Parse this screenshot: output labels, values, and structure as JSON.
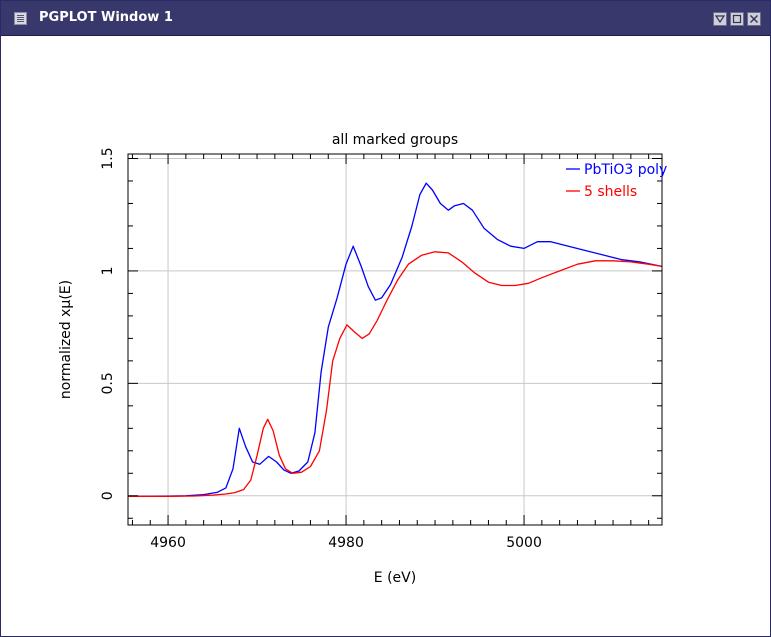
{
  "window": {
    "title": "PGPLOT Window 1",
    "icons": {
      "app": "window-menu-icon",
      "minimize": "minimize-icon",
      "maximize": "maximize-icon",
      "close": "close-icon"
    }
  },
  "chart_data": {
    "type": "line",
    "title": "all marked groups",
    "xlabel": "E (eV)",
    "ylabel": "normalized xμ(E)",
    "xlim": [
      4955.5,
      5015.5
    ],
    "ylim": [
      -0.13,
      1.52
    ],
    "x_ticks": [
      4960,
      4980,
      5000
    ],
    "x_tick_labels": [
      "4960",
      "4980",
      "5000"
    ],
    "y_ticks": [
      0,
      0.5,
      1,
      1.5
    ],
    "y_tick_labels": [
      "0",
      "0.5",
      "1",
      "1.5"
    ],
    "grid": true,
    "legend_position": "top-right",
    "series": [
      {
        "name": "PbTiO3 poly",
        "color": "#0000ff",
        "points": [
          [
            4955.5,
            -0.003
          ],
          [
            4958,
            -0.003
          ],
          [
            4960,
            -0.002
          ],
          [
            4962,
            0.0
          ],
          [
            4964,
            0.005
          ],
          [
            4965.5,
            0.015
          ],
          [
            4966.5,
            0.035
          ],
          [
            4967.3,
            0.12
          ],
          [
            4968,
            0.3
          ],
          [
            4968.7,
            0.22
          ],
          [
            4969.5,
            0.15
          ],
          [
            4970.3,
            0.14
          ],
          [
            4971.3,
            0.175
          ],
          [
            4972.2,
            0.15
          ],
          [
            4973,
            0.115
          ],
          [
            4973.8,
            0.1
          ],
          [
            4974.7,
            0.11
          ],
          [
            4975.7,
            0.15
          ],
          [
            4976.5,
            0.28
          ],
          [
            4977.2,
            0.55
          ],
          [
            4978,
            0.75
          ],
          [
            4979,
            0.88
          ],
          [
            4980,
            1.03
          ],
          [
            4980.8,
            1.11
          ],
          [
            4981.7,
            1.02
          ],
          [
            4982.5,
            0.93
          ],
          [
            4983.3,
            0.87
          ],
          [
            4984,
            0.88
          ],
          [
            4985,
            0.94
          ],
          [
            4986.3,
            1.06
          ],
          [
            4987.4,
            1.2
          ],
          [
            4988.3,
            1.34
          ],
          [
            4989,
            1.39
          ],
          [
            4989.7,
            1.36
          ],
          [
            4990.6,
            1.3
          ],
          [
            4991.5,
            1.27
          ],
          [
            4992.2,
            1.29
          ],
          [
            4993.2,
            1.3
          ],
          [
            4994.2,
            1.27
          ],
          [
            4995.5,
            1.19
          ],
          [
            4997,
            1.14
          ],
          [
            4998.5,
            1.11
          ],
          [
            5000,
            1.1
          ],
          [
            5001.5,
            1.13
          ],
          [
            5003,
            1.13
          ],
          [
            5005,
            1.11
          ],
          [
            5007,
            1.09
          ],
          [
            5009,
            1.07
          ],
          [
            5011,
            1.05
          ],
          [
            5013,
            1.04
          ],
          [
            5015.5,
            1.02
          ]
        ]
      },
      {
        "name": "5 shells",
        "color": "#ff0000",
        "points": [
          [
            4955.5,
            -0.003
          ],
          [
            4960,
            -0.003
          ],
          [
            4963,
            -0.001
          ],
          [
            4965,
            0.003
          ],
          [
            4966.5,
            0.008
          ],
          [
            4967.5,
            0.014
          ],
          [
            4968.5,
            0.028
          ],
          [
            4969.3,
            0.07
          ],
          [
            4970,
            0.18
          ],
          [
            4970.7,
            0.3
          ],
          [
            4971.2,
            0.34
          ],
          [
            4971.8,
            0.29
          ],
          [
            4972.5,
            0.18
          ],
          [
            4973.2,
            0.12
          ],
          [
            4974,
            0.1
          ],
          [
            4975,
            0.105
          ],
          [
            4976,
            0.13
          ],
          [
            4977,
            0.2
          ],
          [
            4977.8,
            0.38
          ],
          [
            4978.5,
            0.6
          ],
          [
            4979.3,
            0.7
          ],
          [
            4980.1,
            0.76
          ],
          [
            4980.9,
            0.73
          ],
          [
            4981.8,
            0.7
          ],
          [
            4982.6,
            0.72
          ],
          [
            4983.5,
            0.78
          ],
          [
            4984.6,
            0.87
          ],
          [
            4985.8,
            0.96
          ],
          [
            4987,
            1.03
          ],
          [
            4988.5,
            1.07
          ],
          [
            4990,
            1.085
          ],
          [
            4991.5,
            1.08
          ],
          [
            4993,
            1.04
          ],
          [
            4994.5,
            0.99
          ],
          [
            4996,
            0.95
          ],
          [
            4997.5,
            0.935
          ],
          [
            4999,
            0.935
          ],
          [
            5000.5,
            0.945
          ],
          [
            5002,
            0.97
          ],
          [
            5004,
            1.0
          ],
          [
            5006,
            1.03
          ],
          [
            5008,
            1.045
          ],
          [
            5010,
            1.045
          ],
          [
            5012,
            1.04
          ],
          [
            5014,
            1.03
          ],
          [
            5015.5,
            1.02
          ]
        ]
      }
    ]
  }
}
